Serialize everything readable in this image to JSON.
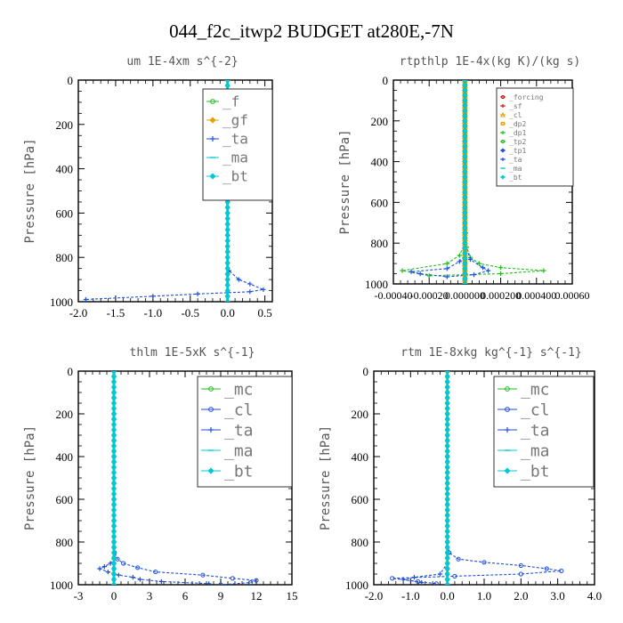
{
  "figure": {
    "title": "044_f2c_itwp2  BUDGET at280E,-7N"
  },
  "colors": {
    "green": "#22bb22",
    "blue": "#1e4fd8",
    "cyan": "#00c8d8",
    "red": "#cc1111",
    "orange": "#e8a000",
    "lime": "#22cc22",
    "ink": "#000000"
  },
  "chart_data": [
    {
      "type": "line",
      "title": "um  1E-4xm s^{-2}",
      "xlabel": "",
      "ylabel": "",
      "xlim": [
        -2,
        0.6
      ],
      "ylim": [
        1000,
        0
      ],
      "xticks": [
        -2,
        -1.5,
        -1,
        -0.5,
        0,
        0.5
      ],
      "xticklabels": [
        "-2.0",
        "-1.5",
        "-1.0",
        "-0.5",
        "0.0",
        "0.5"
      ],
      "yticks": [
        0,
        200,
        400,
        600,
        800,
        1000
      ],
      "legend": {
        "placement": "top-right",
        "font_size": "large"
      },
      "series": [
        {
          "name": "_f",
          "color": "#22bb22",
          "marker": "circle",
          "points": [
            [
              0,
              0
            ],
            [
              0,
              200
            ],
            [
              0,
              400
            ],
            [
              0,
              600
            ],
            [
              0,
              800
            ],
            [
              0,
              900
            ],
            [
              0,
              950
            ],
            [
              0,
              1000
            ]
          ]
        },
        {
          "name": "_gf",
          "color": "#e8a000",
          "marker": "diamond",
          "points": [
            [
              0,
              0
            ],
            [
              0,
              200
            ],
            [
              0,
              400
            ],
            [
              0,
              600
            ],
            [
              0,
              800
            ],
            [
              0,
              900
            ],
            [
              0,
              950
            ],
            [
              0,
              1000
            ]
          ]
        },
        {
          "name": "_ta",
          "color": "#1e4fd8",
          "marker": "cross",
          "points": [
            [
              0,
              0
            ],
            [
              0,
              400
            ],
            [
              0,
              800
            ],
            [
              0.02,
              860
            ],
            [
              0.15,
              900
            ],
            [
              0.3,
              920
            ],
            [
              0.48,
              945
            ],
            [
              0.3,
              955
            ],
            [
              -0.4,
              965
            ],
            [
              -1.0,
              975
            ],
            [
              -1.9,
              990
            ]
          ]
        },
        {
          "name": "_ma",
          "color": "#00c8d8",
          "marker": "dash",
          "points": [
            [
              0,
              0
            ],
            [
              0,
              500
            ],
            [
              0,
              1000
            ]
          ]
        },
        {
          "name": "_bt",
          "color": "#00c8d8",
          "marker": "diamond",
          "points": [
            [
              0,
              0
            ],
            [
              0,
              200
            ],
            [
              0,
              400
            ],
            [
              0,
              600
            ],
            [
              0,
              800
            ],
            [
              0,
              1000
            ]
          ]
        }
      ]
    },
    {
      "type": "line",
      "title": "rtpthlp  1E-4x(kg K)/(kg s)",
      "xlabel": "",
      "ylabel": "",
      "xlim": [
        -0.0004,
        0.0006
      ],
      "ylim": [
        1000,
        0
      ],
      "xticks": [
        -0.0004,
        -0.0002,
        0,
        0.0002,
        0.0004,
        0.0006
      ],
      "xticklabels": [
        "-0.00040",
        "-0.00020",
        "0.000000",
        "0.000200",
        "0.000400",
        "0.00060"
      ],
      "yticks": [
        0,
        200,
        400,
        600,
        800,
        1000
      ],
      "legend": {
        "placement": "top-right",
        "font_size": "small"
      },
      "series": [
        {
          "name": "_forcing",
          "color": "#cc1111",
          "marker": "circle",
          "points": [
            [
              0,
              0
            ],
            [
              0,
              500
            ],
            [
              0,
              1000
            ]
          ]
        },
        {
          "name": "_sf",
          "color": "#cc1111",
          "marker": "cross",
          "points": [
            [
              0,
              0
            ],
            [
              0,
              500
            ],
            [
              0,
              1000
            ]
          ]
        },
        {
          "name": "_cl",
          "color": "#e8a000",
          "marker": "triangle",
          "points": [
            [
              0,
              0
            ],
            [
              0,
              500
            ],
            [
              0,
              1000
            ]
          ]
        },
        {
          "name": "_dp2",
          "color": "#e8a000",
          "marker": "square",
          "points": [
            [
              0,
              0
            ],
            [
              0,
              500
            ],
            [
              0,
              1000
            ]
          ]
        },
        {
          "name": "_dp1",
          "color": "#22bb22",
          "marker": "cross",
          "points": [
            [
              0,
              0
            ],
            [
              1e-06,
              600
            ],
            [
              5e-06,
              750
            ],
            [
              1e-05,
              820
            ],
            [
              3e-05,
              870
            ],
            [
              8e-05,
              900
            ],
            [
              0.0002,
              920
            ],
            [
              0.00044,
              935
            ],
            [
              0.0002,
              950
            ],
            [
              -0.0002,
              960
            ],
            [
              -0.00035,
              935
            ],
            [
              -0.0001,
              900
            ],
            [
              -3e-05,
              860
            ],
            [
              0,
              800
            ]
          ]
        },
        {
          "name": "_tp2",
          "color": "#22bb22",
          "marker": "circle",
          "points": [
            [
              0,
              0
            ],
            [
              0,
              500
            ],
            [
              0,
              1000
            ]
          ]
        },
        {
          "name": "_tp1",
          "color": "#1e4fd8",
          "marker": "diamond",
          "points": [
            [
              0,
              0
            ],
            [
              0,
              500
            ],
            [
              0,
              1000
            ]
          ]
        },
        {
          "name": "_ta",
          "color": "#1e4fd8",
          "marker": "cross",
          "points": [
            [
              0,
              0
            ],
            [
              0,
              800
            ],
            [
              3e-05,
              880
            ],
            [
              0.0001,
              920
            ],
            [
              0.00013,
              935
            ],
            [
              5e-05,
              955
            ],
            [
              -0.0001,
              965
            ],
            [
              -0.00025,
              950
            ],
            [
              -0.0003,
              940
            ],
            [
              -0.0001,
              925
            ],
            [
              -3e-05,
              890
            ],
            [
              0,
              860
            ]
          ]
        },
        {
          "name": "_ma",
          "color": "#00c8d8",
          "marker": "dash",
          "points": [
            [
              0,
              0
            ],
            [
              0,
              500
            ],
            [
              0,
              1000
            ]
          ]
        },
        {
          "name": "_bt",
          "color": "#00c8d8",
          "marker": "diamond",
          "points": [
            [
              0,
              0
            ],
            [
              0,
              500
            ],
            [
              0,
              1000
            ]
          ]
        }
      ]
    },
    {
      "type": "line",
      "title": "thlm  1E-5xK s^{-1}",
      "xlabel": "",
      "ylabel": "",
      "xlim": [
        -3,
        15
      ],
      "ylim": [
        1000,
        0
      ],
      "xticks": [
        -3,
        0,
        3,
        6,
        9,
        12,
        15
      ],
      "xticklabels": [
        "-3",
        "0",
        "3",
        "6",
        "9",
        "12",
        "15"
      ],
      "yticks": [
        0,
        200,
        400,
        600,
        800,
        1000
      ],
      "legend": {
        "placement": "right",
        "font_size": "large"
      },
      "series": [
        {
          "name": "_mc",
          "color": "#22bb22",
          "marker": "circle",
          "points": [
            [
              0,
              0
            ],
            [
              0,
              200
            ],
            [
              0,
              400
            ],
            [
              0,
              600
            ],
            [
              0,
              800
            ],
            [
              0,
              1000
            ]
          ]
        },
        {
          "name": "_cl",
          "color": "#1e4fd8",
          "marker": "circle",
          "points": [
            [
              0,
              0
            ],
            [
              0,
              400
            ],
            [
              0,
              800
            ],
            [
              0.05,
              850
            ],
            [
              0.3,
              880
            ],
            [
              0.8,
              900
            ],
            [
              2.0,
              920
            ],
            [
              3.5,
              940
            ],
            [
              7.5,
              955
            ],
            [
              10.0,
              970
            ],
            [
              12.0,
              980
            ],
            [
              11.5,
              990
            ],
            [
              9.0,
              1000
            ]
          ]
        },
        {
          "name": "_ta",
          "color": "#1e4fd8",
          "marker": "cross",
          "points": [
            [
              0,
              0
            ],
            [
              0,
              600
            ],
            [
              0,
              880
            ],
            [
              -0.3,
              900
            ],
            [
              -0.8,
              915
            ],
            [
              -1.2,
              925
            ],
            [
              -0.5,
              940
            ],
            [
              0.4,
              955
            ],
            [
              1.6,
              965
            ],
            [
              2.2,
              975
            ],
            [
              4,
              985
            ],
            [
              8,
              995
            ]
          ]
        },
        {
          "name": "_ma",
          "color": "#00c8d8",
          "marker": "dash",
          "points": [
            [
              0,
              0
            ],
            [
              0,
              500
            ],
            [
              0,
              1000
            ]
          ]
        },
        {
          "name": "_bt",
          "color": "#00c8d8",
          "marker": "diamond",
          "points": [
            [
              0,
              0
            ],
            [
              0,
              200
            ],
            [
              0,
              400
            ],
            [
              0,
              600
            ],
            [
              0,
              800
            ],
            [
              0,
              1000
            ]
          ]
        }
      ]
    },
    {
      "type": "line",
      "title": "rtm  1E-8xkg kg^{-1} s^{-1}",
      "xlabel": "",
      "ylabel": "",
      "xlim": [
        -2,
        4
      ],
      "ylim": [
        1000,
        0
      ],
      "xticks": [
        -2,
        -1,
        0,
        1,
        2,
        3,
        4
      ],
      "xticklabels": [
        "-2.0",
        "-1.0",
        "0.0",
        "1.0",
        "2.0",
        "3.0",
        "4.0"
      ],
      "yticks": [
        0,
        200,
        400,
        600,
        800,
        1000
      ],
      "legend": {
        "placement": "right",
        "font_size": "large"
      },
      "series": [
        {
          "name": "_mc",
          "color": "#22bb22",
          "marker": "circle",
          "points": [
            [
              0,
              0
            ],
            [
              0,
              200
            ],
            [
              0,
              400
            ],
            [
              0,
              600
            ],
            [
              0,
              800
            ],
            [
              0,
              1000
            ]
          ]
        },
        {
          "name": "_cl",
          "color": "#1e4fd8",
          "marker": "circle",
          "points": [
            [
              0,
              0
            ],
            [
              0,
              400
            ],
            [
              0,
              800
            ],
            [
              0.05,
              850
            ],
            [
              0.3,
              880
            ],
            [
              1.0,
              895
            ],
            [
              2.0,
              910
            ],
            [
              2.7,
              925
            ],
            [
              3.1,
              935
            ],
            [
              2.0,
              950
            ],
            [
              0.2,
              960
            ],
            [
              -1.5,
              970
            ],
            [
              -0.8,
              985
            ],
            [
              -0.3,
              995
            ]
          ]
        },
        {
          "name": "_ta",
          "color": "#1e4fd8",
          "marker": "cross",
          "points": [
            [
              0,
              0
            ],
            [
              0,
              900
            ],
            [
              -0.2,
              950
            ],
            [
              -0.9,
              965
            ],
            [
              -1.2,
              975
            ],
            [
              -0.7,
              990
            ]
          ]
        },
        {
          "name": "_ma",
          "color": "#00c8d8",
          "marker": "dash",
          "points": [
            [
              0,
              0
            ],
            [
              0,
              500
            ],
            [
              0,
              1000
            ]
          ]
        },
        {
          "name": "_bt",
          "color": "#00c8d8",
          "marker": "diamond",
          "points": [
            [
              0,
              0
            ],
            [
              0,
              200
            ],
            [
              0,
              400
            ],
            [
              0,
              600
            ],
            [
              0,
              800
            ],
            [
              0,
              1000
            ]
          ]
        }
      ]
    }
  ],
  "axis": {
    "ylabel": "Pressure [hPa]"
  }
}
